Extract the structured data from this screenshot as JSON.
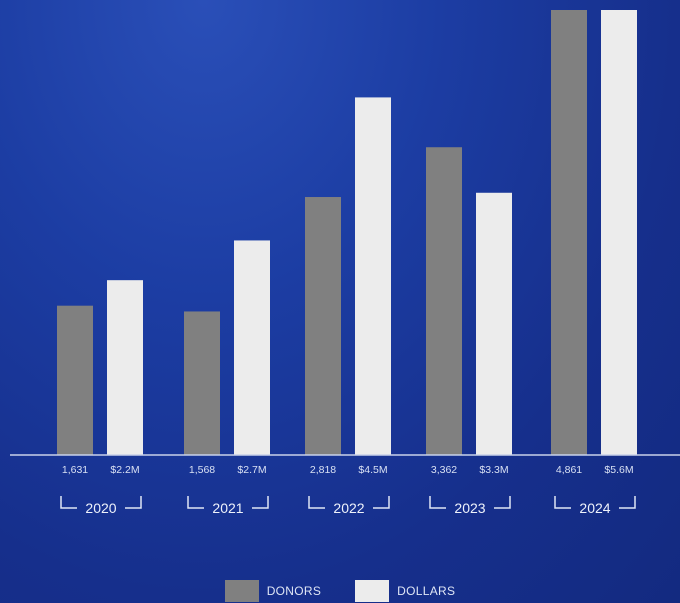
{
  "chart_data": {
    "type": "bar",
    "categories": [
      "2020",
      "2021",
      "2022",
      "2023",
      "2024"
    ],
    "series": [
      {
        "name": "DONORS",
        "values": [
          1631,
          1568,
          2818,
          3362,
          4861
        ],
        "labels": [
          "1,631",
          "1,568",
          "2,818",
          "3,362",
          "4,861"
        ],
        "color": "#808080"
      },
      {
        "name": "DOLLARS",
        "values": [
          2.2,
          2.7,
          4.5,
          3.3,
          5.6
        ],
        "labels": [
          "$2.2M",
          "$2.7M",
          "$4.5M",
          "$3.3M",
          "$5.6M"
        ],
        "color": "#ececec"
      }
    ],
    "axis_color": "#c9d2ea",
    "grid": false,
    "legend_position": "bottom-center"
  }
}
